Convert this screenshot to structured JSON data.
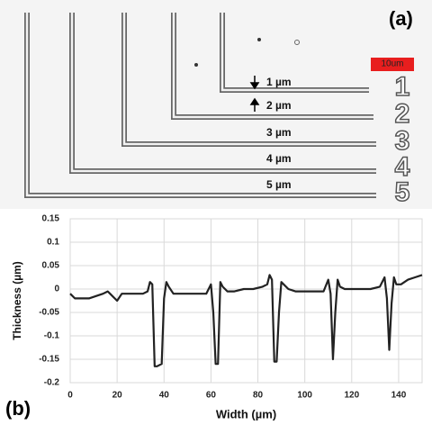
{
  "panel_a": {
    "label": "(a)",
    "scale_bar": "10um",
    "gaps": [
      "1 µm",
      "2 µm",
      "3 µm",
      "4 µm",
      "5 µm"
    ],
    "numerals": [
      "1",
      "2",
      "3",
      "4",
      "5"
    ]
  },
  "chart_data": {
    "type": "line",
    "panel_label": "(b)",
    "x_label": "Width (µm)",
    "y_label": "Thickness (µm)",
    "x": [
      0,
      2,
      5,
      8,
      11,
      14,
      16,
      17,
      18,
      20,
      22,
      25,
      28,
      31,
      33,
      34,
      35,
      36,
      37,
      39,
      40,
      41,
      42,
      44,
      48,
      52,
      56,
      58,
      60,
      61,
      62,
      63,
      64,
      65,
      67,
      70,
      74,
      78,
      82,
      84,
      85,
      86,
      87,
      88,
      89,
      90,
      91,
      93,
      96,
      100,
      104,
      108,
      110,
      111,
      112,
      113,
      114,
      115,
      117,
      120,
      124,
      128,
      132,
      134,
      135,
      136,
      137,
      138,
      139,
      141,
      144,
      147,
      150
    ],
    "series": [
      {
        "color": "#222222",
        "values": [
          -0.01,
          -0.02,
          -0.02,
          -0.02,
          -0.015,
          -0.01,
          -0.005,
          -0.01,
          -0.015,
          -0.025,
          -0.01,
          -0.01,
          -0.01,
          -0.01,
          -0.005,
          0.015,
          0.01,
          -0.165,
          -0.165,
          -0.16,
          -0.02,
          0.015,
          0.005,
          -0.01,
          -0.01,
          -0.01,
          -0.01,
          -0.01,
          0.01,
          -0.05,
          -0.16,
          -0.16,
          0.015,
          0.005,
          -0.005,
          -0.005,
          0,
          0,
          0.005,
          0.01,
          0.03,
          0.02,
          -0.155,
          -0.155,
          -0.05,
          0.015,
          0.01,
          0,
          -0.005,
          -0.005,
          -0.005,
          -0.005,
          0.02,
          -0.01,
          -0.15,
          -0.05,
          0.02,
          0.005,
          0,
          0,
          0,
          0,
          0.005,
          0.025,
          -0.02,
          -0.13,
          -0.03,
          0.025,
          0.01,
          0.01,
          0.02,
          0.025,
          0.03
        ]
      }
    ],
    "xlim": [
      0,
      150
    ],
    "xticks": [
      0,
      20,
      40,
      60,
      80,
      100,
      120,
      140
    ],
    "ylim": [
      -0.2,
      0.15
    ],
    "yticks": [
      -0.2,
      -0.15,
      -0.1,
      -0.05,
      0,
      0.05,
      0.1,
      0.15
    ],
    "grid": true
  }
}
